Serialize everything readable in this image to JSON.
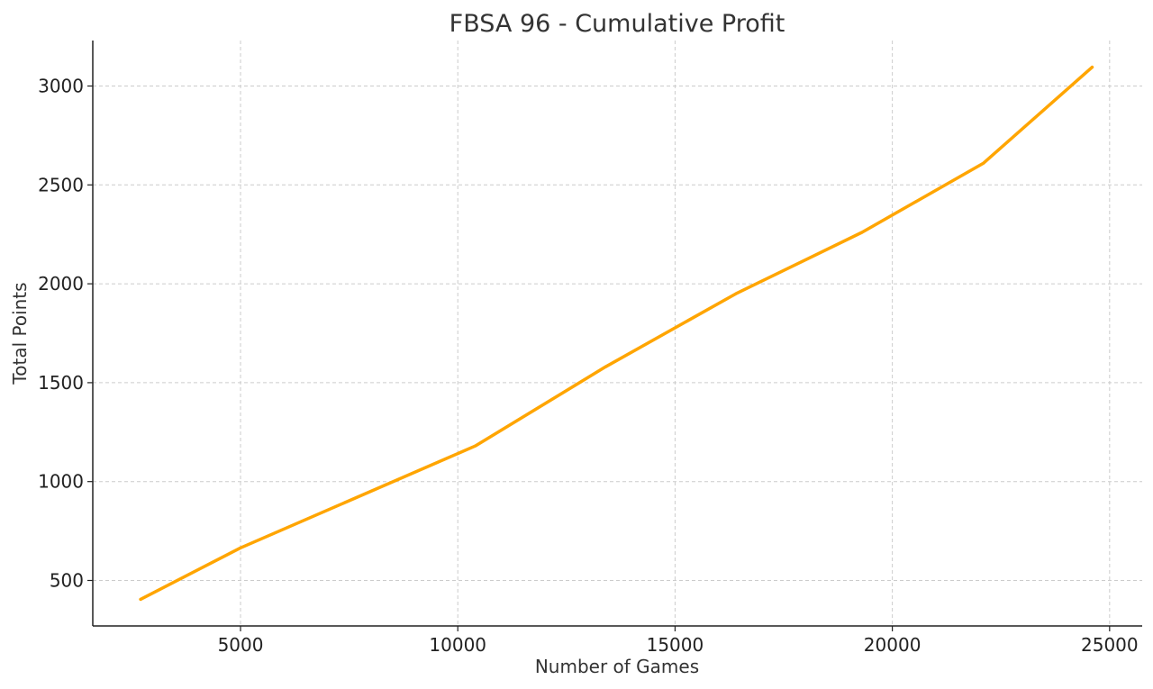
{
  "chart_data": {
    "type": "line",
    "title": "FBSA 96 - Cumulative Profit",
    "xlabel": "Number of Games",
    "ylabel": "Total Points",
    "xlim": [
      1600,
      25750
    ],
    "ylim": [
      270,
      3230
    ],
    "x_ticks": [
      5000,
      10000,
      15000,
      20000,
      25000
    ],
    "y_ticks": [
      500,
      1000,
      1500,
      2000,
      2500,
      3000
    ],
    "grid": true,
    "series": [
      {
        "color": "#FFA500",
        "x": [
          2700,
          5000,
          10400,
          13400,
          16400,
          19300,
          22100,
          24600
        ],
        "y": [
          405,
          665,
          1180,
          1580,
          1950,
          2260,
          2610,
          3095
        ]
      }
    ]
  }
}
